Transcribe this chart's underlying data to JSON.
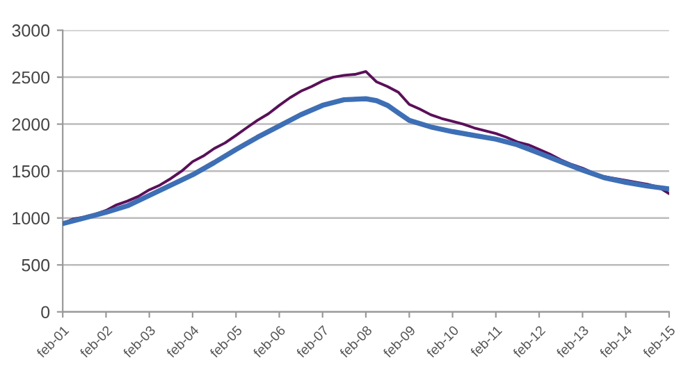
{
  "chart_data": {
    "type": "line",
    "xlim": [
      "2001-02",
      "2015-02"
    ],
    "xticks": [
      {
        "value": "2001-02",
        "label": "feb-01"
      },
      {
        "value": "2002-02",
        "label": "feb-02"
      },
      {
        "value": "2003-02",
        "label": "feb-03"
      },
      {
        "value": "2004-02",
        "label": "feb-04"
      },
      {
        "value": "2005-02",
        "label": "feb-05"
      },
      {
        "value": "2006-02",
        "label": "feb-06"
      },
      {
        "value": "2007-02",
        "label": "feb-07"
      },
      {
        "value": "2008-02",
        "label": "feb-08"
      },
      {
        "value": "2009-02",
        "label": "feb-09"
      },
      {
        "value": "2010-02",
        "label": "feb-10"
      },
      {
        "value": "2011-02",
        "label": "feb-11"
      },
      {
        "value": "2012-02",
        "label": "feb-12"
      },
      {
        "value": "2013-02",
        "label": "feb-13"
      },
      {
        "value": "2014-02",
        "label": "feb-14"
      },
      {
        "value": "2015-02",
        "label": "feb-15"
      }
    ],
    "ylim": [
      0,
      3000
    ],
    "yticks": [
      0,
      500,
      1000,
      1500,
      2000,
      2500,
      3000
    ],
    "grid": "y",
    "marker": "none",
    "line_style": "solid",
    "series": [
      {
        "color": "#5b0f5a",
        "x": [
          "2001-02",
          "2001-05",
          "2001-08",
          "2001-11",
          "2002-02",
          "2002-05",
          "2002-08",
          "2002-11",
          "2003-02",
          "2003-05",
          "2003-08",
          "2003-11",
          "2004-02",
          "2004-05",
          "2004-08",
          "2004-11",
          "2005-02",
          "2005-05",
          "2005-08",
          "2005-11",
          "2006-02",
          "2006-05",
          "2006-08",
          "2006-11",
          "2007-02",
          "2007-05",
          "2007-08",
          "2007-11",
          "2008-02",
          "2008-05",
          "2008-08",
          "2008-11",
          "2009-02",
          "2009-05",
          "2009-08",
          "2009-11",
          "2010-02",
          "2010-05",
          "2010-08",
          "2010-11",
          "2011-02",
          "2011-05",
          "2011-08",
          "2011-11",
          "2012-02",
          "2012-05",
          "2012-08",
          "2012-11",
          "2013-02",
          "2013-05",
          "2013-08",
          "2013-11",
          "2014-02",
          "2014-05",
          "2014-08",
          "2014-11",
          "2015-02"
        ],
        "values": [
          940,
          990,
          1010,
          1040,
          1080,
          1140,
          1180,
          1230,
          1300,
          1350,
          1420,
          1500,
          1600,
          1660,
          1740,
          1800,
          1880,
          1960,
          2040,
          2110,
          2200,
          2280,
          2350,
          2400,
          2460,
          2500,
          2520,
          2530,
          2560,
          2450,
          2400,
          2340,
          2210,
          2160,
          2100,
          2060,
          2030,
          2000,
          1960,
          1930,
          1900,
          1860,
          1810,
          1780,
          1730,
          1680,
          1620,
          1570,
          1530,
          1480,
          1440,
          1420,
          1400,
          1380,
          1360,
          1330,
          1260
        ]
      },
      {
        "color": "#3d6fb6",
        "x": [
          "2001-02",
          "2001-08",
          "2002-02",
          "2002-08",
          "2003-02",
          "2003-08",
          "2004-02",
          "2004-08",
          "2005-02",
          "2005-08",
          "2006-02",
          "2006-08",
          "2007-02",
          "2007-08",
          "2008-02",
          "2008-05",
          "2008-08",
          "2008-11",
          "2009-02",
          "2009-08",
          "2010-02",
          "2010-08",
          "2011-02",
          "2011-08",
          "2012-02",
          "2012-08",
          "2013-02",
          "2013-08",
          "2014-02",
          "2014-08",
          "2015-02"
        ],
        "values": [
          940,
          1000,
          1060,
          1130,
          1240,
          1350,
          1460,
          1590,
          1730,
          1860,
          1980,
          2100,
          2200,
          2260,
          2270,
          2250,
          2200,
          2120,
          2040,
          1970,
          1920,
          1880,
          1840,
          1780,
          1690,
          1600,
          1510,
          1430,
          1380,
          1340,
          1310
        ]
      }
    ]
  }
}
